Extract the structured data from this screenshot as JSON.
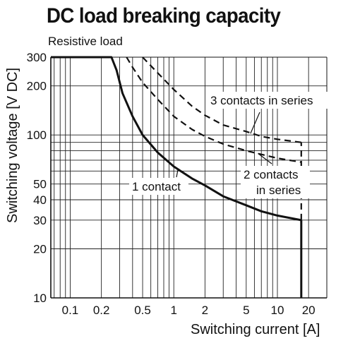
{
  "chart_data": {
    "type": "line",
    "title": "DC load breaking capacity",
    "subtitle": "Resistive load",
    "xlabel": "Switching current [A]",
    "ylabel": "Switching voltage [V DC]",
    "xscale": "log",
    "yscale": "log",
    "xlim": [
      0.065,
      30
    ],
    "ylim": [
      10,
      300
    ],
    "grid": true,
    "x_ticks": [
      "0.1",
      "0.2",
      "0.5",
      "1",
      "2",
      "5",
      "10",
      "20"
    ],
    "x_tick_values": [
      0.1,
      0.2,
      0.5,
      1,
      2,
      5,
      10,
      20
    ],
    "y_ticks": [
      "10",
      "20",
      "30",
      "40",
      "50",
      "100",
      "200",
      "300"
    ],
    "y_tick_values": [
      10,
      20,
      30,
      40,
      50,
      100,
      200,
      300
    ],
    "series": [
      {
        "name": "1 contact",
        "style": "solid",
        "x": [
          0.065,
          0.25,
          0.28,
          0.32,
          0.4,
          0.5,
          0.7,
          1,
          1.5,
          2,
          3,
          5,
          7,
          10,
          17
        ],
        "y": [
          300,
          300,
          250,
          180,
          130,
          100,
          78,
          64,
          54,
          49,
          42,
          37,
          34,
          32,
          30
        ]
      },
      {
        "name": "2 contacts in series",
        "style": "dashed",
        "x": [
          0.35,
          0.4,
          0.5,
          0.7,
          1,
          1.5,
          2,
          3,
          5,
          7,
          10,
          17
        ],
        "y": [
          300,
          260,
          210,
          165,
          130,
          108,
          98,
          88,
          80,
          76,
          72,
          68
        ]
      },
      {
        "name": "3 contacts in series",
        "style": "dashed",
        "x": [
          0.5,
          0.7,
          1,
          1.5,
          2,
          3,
          5,
          7,
          10,
          17
        ],
        "y": [
          300,
          240,
          190,
          150,
          132,
          115,
          105,
          98,
          94,
          90
        ]
      }
    ],
    "limit_line": {
      "style": "dashed",
      "x": 17,
      "y_from": 30,
      "y_to": 90
    },
    "limit_line_solid": {
      "x": 17,
      "y_from": 10,
      "y_to": 30
    },
    "annotations": [
      {
        "text": "3 contacts in series",
        "lines": [
          "3 contacts in series"
        ],
        "series": 2,
        "at_x": 5.5,
        "at_y": 102
      },
      {
        "text": "2 contacts in series",
        "lines": [
          "2 contacts",
          "in series"
        ],
        "series": 1,
        "at_x": 6.5,
        "at_y": 77
      },
      {
        "text": "1 contact",
        "lines": [
          "1 contact"
        ],
        "series": 0,
        "at_x": 1.1,
        "at_y": 62
      }
    ]
  }
}
